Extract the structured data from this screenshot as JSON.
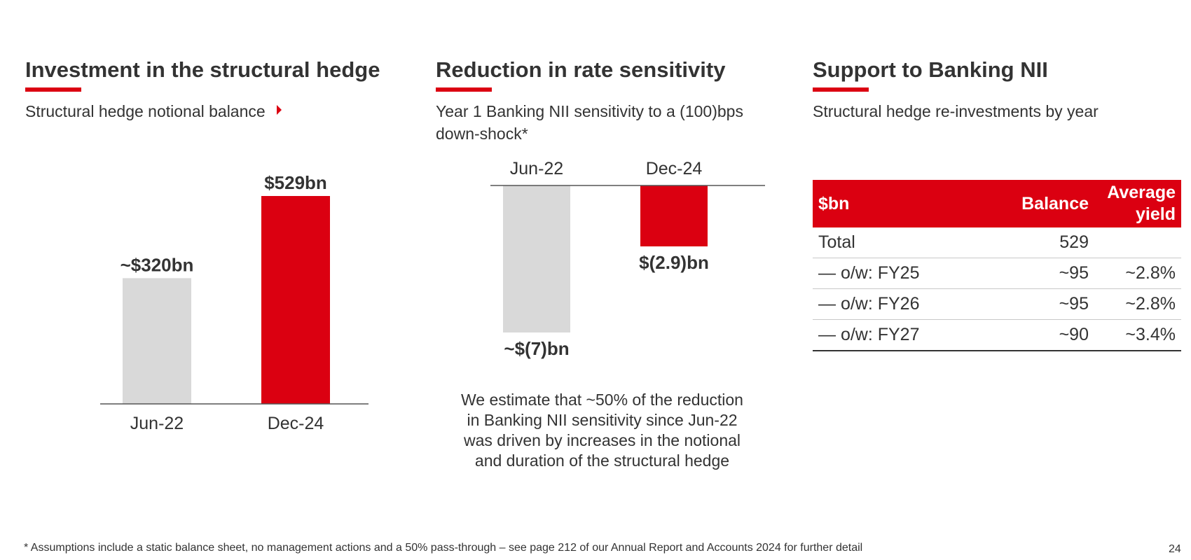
{
  "panels": {
    "hedge": {
      "title": "Investment in the structural hedge",
      "subtitle": "Structural hedge notional balance"
    },
    "sensitivity": {
      "title": "Reduction in rate sensitivity",
      "subtitle_line1": "Year 1 Banking NII sensitivity to a (100)bps",
      "subtitle_line2": "down-shock*",
      "note_lines": [
        "We estimate that ~50% of the reduction",
        "in Banking NII sensitivity since Jun-22",
        "was driven by increases in the notional",
        "and duration of the structural hedge"
      ]
    },
    "support": {
      "title": "Support to Banking NII",
      "subtitle": "Structural hedge re-investments by year"
    }
  },
  "chart_data": [
    {
      "type": "bar",
      "categories": [
        "Jun-22",
        "Dec-24"
      ],
      "values": [
        320,
        529
      ],
      "data_labels": [
        "~$320bn",
        "$529bn"
      ],
      "unit": "$bn",
      "ylim": [
        0,
        529
      ],
      "grid": false,
      "colors": [
        "#d9d9d9",
        "#db0011"
      ]
    },
    {
      "type": "bar",
      "categories": [
        "Jun-22",
        "Dec-24"
      ],
      "values": [
        -7,
        -2.9
      ],
      "data_labels": [
        "~$(7)bn",
        "$(2.9)bn"
      ],
      "unit": "$bn",
      "ylim": [
        -7,
        0
      ],
      "grid": false,
      "colors": [
        "#d9d9d9",
        "#db0011"
      ]
    },
    {
      "type": "table",
      "columns": [
        "$bn",
        "Balance",
        "Average yield"
      ],
      "header_yield_lines": [
        "Average",
        "yield"
      ],
      "rows": [
        [
          "Total",
          "529",
          ""
        ],
        [
          "— o/w: FY25",
          "~95",
          "~2.8%"
        ],
        [
          "— o/w: FY26",
          "~95",
          "~2.8%"
        ],
        [
          "— o/w: FY27",
          "~90",
          "~3.4%"
        ]
      ]
    }
  ],
  "footnote": "* Assumptions include a static balance sheet, no management actions and a 50% pass-through – see page 212 of our Annual Report and Accounts 2024 for further detail",
  "page_number": "24",
  "colors": {
    "accent": "#db0011",
    "neutral_bar": "#d9d9d9",
    "text": "#333333"
  }
}
